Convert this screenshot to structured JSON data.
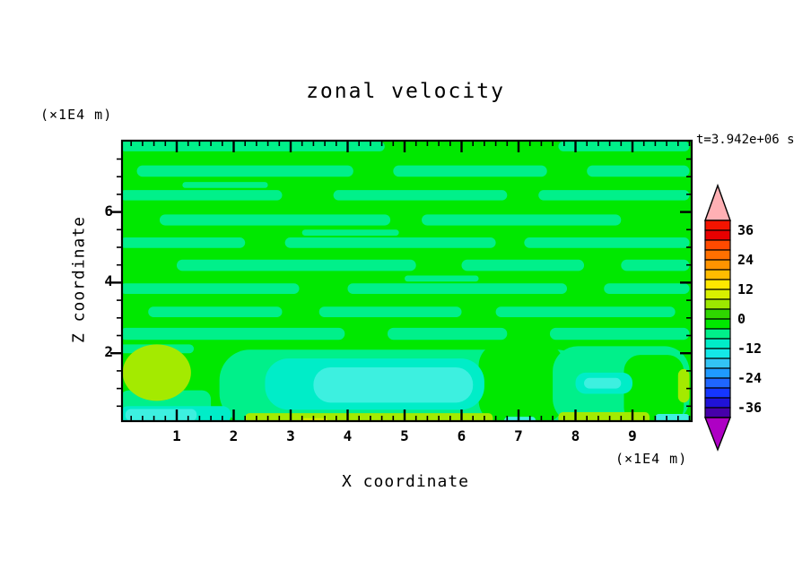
{
  "ui": {
    "title": "zonal velocity",
    "timestamp": "t=3.942e+06 s",
    "unit_label": "(×1E4 m)",
    "x_axis_label": "X coordinate",
    "z_axis_label": "Z coordinate"
  },
  "field_colors": {
    "green": "#00e800",
    "spring": "#00f08a",
    "teal": "#00edc8",
    "cyan": "#3df0e0",
    "chartreuse": "#a4ea00",
    "yellow_green": "#d8f000"
  },
  "colorbar": {
    "labels": [
      "36",
      "24",
      "12",
      "0",
      "-12",
      "-24",
      "-36"
    ],
    "labeled_levels": [
      36,
      24,
      12,
      0,
      -12,
      -24,
      -36
    ],
    "level_min": -40,
    "level_max": 40,
    "step": 4,
    "segment_colors_top_to_bottom": [
      "#f41400",
      "#e80000",
      "#ff4a00",
      "#ff7000",
      "#ff9400",
      "#ffbc00",
      "#ffe800",
      "#d8f000",
      "#9ce800",
      "#2fd600",
      "#00e800",
      "#00f08a",
      "#00edc8",
      "#14e8e8",
      "#33c4f4",
      "#1f9aff",
      "#1f66ff",
      "#1536ff",
      "#2012d8",
      "#4600aa"
    ],
    "over_arrow_color": "#ffb0b4",
    "under_arrow_color": "#ae00c4"
  },
  "chart_data": {
    "type": "filled_contour",
    "title": "zonal velocity",
    "xlabel": "X coordinate",
    "ylabel": "Z coordinate",
    "axis_units": "(×1E4 m)",
    "time_annotation": "t=3.942e+06 s",
    "x_range": [
      0,
      10
    ],
    "z_range": [
      0,
      8
    ],
    "x_major_ticks": [
      1,
      2,
      3,
      4,
      5,
      6,
      7,
      8,
      9
    ],
    "x_minor_step": 0.2,
    "z_major_ticks": [
      2,
      4,
      6
    ],
    "z_minor_step": 0.5,
    "contour_interval": 4,
    "colorbar_range": [
      -40,
      40
    ],
    "colorbar_labeled_levels": [
      36,
      24,
      12,
      0,
      -12,
      -24,
      -36
    ],
    "value_bands_by_color": {
      "green": "-4 to 0",
      "spring": "-8 to -4",
      "teal": "-12 to -8",
      "cyan": "-16 to -12",
      "chartreuse": "4 to 8",
      "yellow_green": "8 to 12"
    },
    "field_summary": "Horizontally banded near-zero velocity field: alternating green (-4..0) and spring-green (-8..-4) streaks over 2<z<8; below z=2 a broad negative anomaly (teal/cyan, down to -16) centered near x=2.5-6.5 and x=8-9.3, with positive patches (chartreuse, 4-12) near x=0-1.2 z=1-2 and along the bottom boundary at x=2.2-6.5 and x=7.7-9.3.",
    "regions": [
      {
        "x": [
          0,
          4.65
        ],
        "z": [
          7.72,
          8.0
        ],
        "c": "spring"
      },
      {
        "x": [
          7.7,
          10
        ],
        "z": [
          7.72,
          8.0
        ],
        "c": "spring"
      },
      {
        "x": [
          0.3,
          4.1
        ],
        "z": [
          7.0,
          7.32
        ],
        "c": "spring"
      },
      {
        "x": [
          4.8,
          7.5
        ],
        "z": [
          7.0,
          7.32
        ],
        "c": "spring"
      },
      {
        "x": [
          8.2,
          10
        ],
        "z": [
          7.0,
          7.32
        ],
        "c": "spring"
      },
      {
        "x": [
          1.1,
          2.6
        ],
        "z": [
          6.68,
          6.85
        ],
        "c": "spring"
      },
      {
        "x": [
          0,
          2.85
        ],
        "z": [
          6.33,
          6.62
        ],
        "c": "spring"
      },
      {
        "x": [
          3.75,
          6.8
        ],
        "z": [
          6.33,
          6.62
        ],
        "c": "spring"
      },
      {
        "x": [
          7.35,
          10
        ],
        "z": [
          6.33,
          6.62
        ],
        "c": "spring"
      },
      {
        "x": [
          0.7,
          4.75
        ],
        "z": [
          5.62,
          5.93
        ],
        "c": "spring"
      },
      {
        "x": [
          5.3,
          8.8
        ],
        "z": [
          5.62,
          5.93
        ],
        "c": "spring"
      },
      {
        "x": [
          3.2,
          4.9
        ],
        "z": [
          5.33,
          5.5
        ],
        "c": "spring"
      },
      {
        "x": [
          0,
          2.2
        ],
        "z": [
          4.98,
          5.28
        ],
        "c": "spring"
      },
      {
        "x": [
          2.9,
          6.6
        ],
        "z": [
          4.98,
          5.28
        ],
        "c": "spring"
      },
      {
        "x": [
          7.1,
          10
        ],
        "z": [
          4.98,
          5.28
        ],
        "c": "spring"
      },
      {
        "x": [
          1.0,
          5.2
        ],
        "z": [
          4.33,
          4.65
        ],
        "c": "spring"
      },
      {
        "x": [
          6.0,
          8.15
        ],
        "z": [
          4.33,
          4.65
        ],
        "c": "spring"
      },
      {
        "x": [
          8.8,
          10
        ],
        "z": [
          4.33,
          4.65
        ],
        "c": "spring"
      },
      {
        "x": [
          5.0,
          6.3
        ],
        "z": [
          4.03,
          4.2
        ],
        "c": "spring"
      },
      {
        "x": [
          0,
          3.15
        ],
        "z": [
          3.68,
          3.98
        ],
        "c": "spring"
      },
      {
        "x": [
          4.0,
          7.85
        ],
        "z": [
          3.68,
          3.98
        ],
        "c": "spring"
      },
      {
        "x": [
          8.5,
          10
        ],
        "z": [
          3.68,
          3.98
        ],
        "c": "spring"
      },
      {
        "x": [
          0.5,
          2.85
        ],
        "z": [
          3.02,
          3.32
        ],
        "c": "spring"
      },
      {
        "x": [
          3.5,
          6.0
        ],
        "z": [
          3.02,
          3.32
        ],
        "c": "spring"
      },
      {
        "x": [
          6.6,
          9.75
        ],
        "z": [
          3.02,
          3.32
        ],
        "c": "spring"
      },
      {
        "x": [
          0,
          3.95
        ],
        "z": [
          2.38,
          2.72
        ],
        "c": "spring"
      },
      {
        "x": [
          4.7,
          6.8
        ],
        "z": [
          2.38,
          2.72
        ],
        "c": "spring"
      },
      {
        "x": [
          7.55,
          10
        ],
        "z": [
          2.38,
          2.72
        ],
        "c": "spring"
      },
      {
        "x": [
          0,
          1.3
        ],
        "z": [
          2.0,
          2.25
        ],
        "c": "spring"
      },
      {
        "x": [
          0,
          1.6
        ],
        "z": [
          0,
          0.95
        ],
        "c": "spring",
        "r": 10
      },
      {
        "x": [
          1.75,
          8.2
        ],
        "z": [
          0,
          2.1
        ],
        "c": "spring",
        "r": 34
      },
      {
        "x": [
          6.3,
          7.8
        ],
        "z": [
          0,
          2.3
        ],
        "c": "green",
        "r": 26
      },
      {
        "x": [
          7.6,
          10
        ],
        "z": [
          0,
          2.2
        ],
        "c": "spring",
        "r": 28
      },
      {
        "x": [
          8.85,
          9.9
        ],
        "z": [
          0,
          1.95
        ],
        "c": "green",
        "r": 18
      },
      {
        "x": [
          9.8,
          10
        ],
        "z": [
          0.6,
          1.55
        ],
        "c": "chartreuse",
        "r": 7
      },
      {
        "x": [
          2.55,
          6.4
        ],
        "z": [
          0.4,
          1.85
        ],
        "c": "teal",
        "r": 26
      },
      {
        "x": [
          3.4,
          6.2
        ],
        "z": [
          0.6,
          1.6
        ],
        "c": "cyan",
        "r": 19
      },
      {
        "x": [
          8.0,
          9.0
        ],
        "z": [
          0.85,
          1.45
        ],
        "c": "teal",
        "r": 11
      },
      {
        "x": [
          8.15,
          8.8
        ],
        "z": [
          1.0,
          1.3
        ],
        "c": "cyan",
        "r": 6
      },
      {
        "x": [
          0.05,
          1.25
        ],
        "z": [
          0.65,
          2.25
        ],
        "c": "chartreuse",
        "shape": "ellipse"
      },
      {
        "x": [
          0,
          1.95
        ],
        "z": [
          0,
          0.5
        ],
        "c": "teal",
        "r": 9
      },
      {
        "x": [
          0.1,
          1.35
        ],
        "z": [
          0.08,
          0.42
        ],
        "c": "cyan",
        "r": 6
      },
      {
        "x": [
          2.2,
          6.55
        ],
        "z": [
          0,
          0.3
        ],
        "c": "chartreuse",
        "r": 5
      },
      {
        "x": [
          3.2,
          3.65
        ],
        "z": [
          0,
          0.16
        ],
        "c": "yellow_green",
        "r": 3
      },
      {
        "x": [
          6.75,
          7.3
        ],
        "z": [
          0,
          0.2
        ],
        "c": "cyan",
        "r": 4
      },
      {
        "x": [
          7.7,
          9.3
        ],
        "z": [
          0,
          0.33
        ],
        "c": "chartreuse",
        "r": 5
      },
      {
        "x": [
          9.4,
          10
        ],
        "z": [
          0,
          0.28
        ],
        "c": "cyan",
        "r": 4
      }
    ]
  }
}
